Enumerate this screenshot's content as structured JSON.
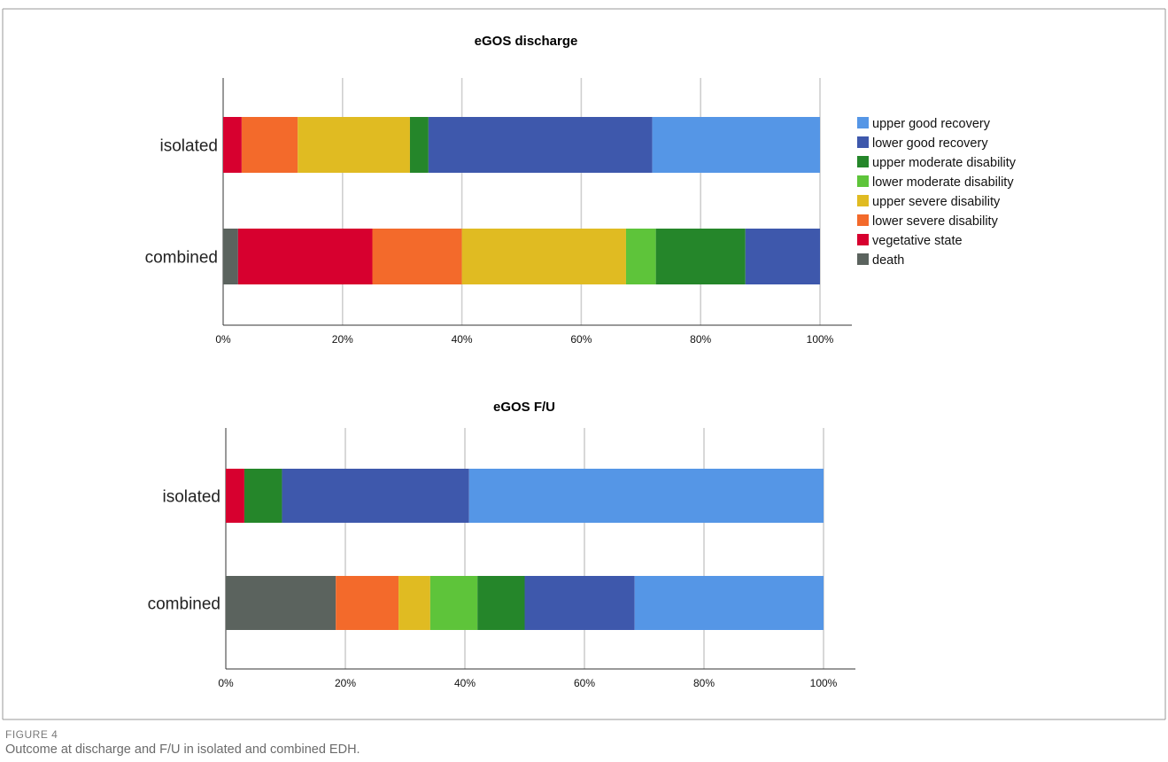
{
  "figure": {
    "label": "FIGURE 4",
    "caption": "Outcome at discharge and F/U in isolated and combined EDH."
  },
  "legend": {
    "placement": "right of top chart",
    "entries": [
      {
        "name": "upper good recovery",
        "color": "#5596e6"
      },
      {
        "name": "lower good recovery",
        "color": "#3e58ac"
      },
      {
        "name": "upper moderate disability",
        "color": "#25862a"
      },
      {
        "name": "lower moderate disability",
        "color": "#5ec43a"
      },
      {
        "name": "upper severe disability",
        "color": "#e0bb22"
      },
      {
        "name": "lower severe disability",
        "color": "#f36a2b"
      },
      {
        "name": "vegetative state",
        "color": "#d7002f"
      },
      {
        "name": "death",
        "color": "#5b635e"
      }
    ]
  },
  "chart_data": [
    {
      "type": "bar",
      "orientation": "horizontal",
      "stacked": true,
      "title": "eGOS discharge",
      "categories": [
        "isolated",
        "combined"
      ],
      "xlim": [
        0,
        100
      ],
      "xticks": [
        "0%",
        "20%",
        "40%",
        "60%",
        "80%",
        "100%"
      ],
      "grid": "vertical",
      "series": [
        {
          "name": "death",
          "values": [
            0,
            2.5
          ]
        },
        {
          "name": "vegetative state",
          "values": [
            3.1,
            22.5
          ]
        },
        {
          "name": "lower severe disability",
          "values": [
            9.4,
            15
          ]
        },
        {
          "name": "upper severe disability",
          "values": [
            18.8,
            27.5
          ]
        },
        {
          "name": "upper moderate disability",
          "values": [
            3.1,
            0
          ]
        },
        {
          "name": "lower moderate disability",
          "values": [
            0,
            5
          ]
        },
        {
          "name": "upper moderate disability",
          "values": [
            0,
            15
          ]
        },
        {
          "name": "lower good recovery",
          "values": [
            37.5,
            12.5
          ]
        },
        {
          "name": "upper good recovery",
          "values": [
            28.1,
            0
          ]
        }
      ]
    },
    {
      "type": "bar",
      "orientation": "horizontal",
      "stacked": true,
      "title": "eGOS F/U",
      "categories": [
        "isolated",
        "combined"
      ],
      "xlim": [
        0,
        100
      ],
      "xticks": [
        "0%",
        "20%",
        "40%",
        "60%",
        "80%",
        "100%"
      ],
      "grid": "vertical",
      "series": [
        {
          "name": "death",
          "values": [
            0,
            18.4
          ]
        },
        {
          "name": "vegetative state",
          "values": [
            3.1,
            0
          ]
        },
        {
          "name": "lower severe disability",
          "values": [
            0,
            10.5
          ]
        },
        {
          "name": "upper severe disability",
          "values": [
            0,
            5.3
          ]
        },
        {
          "name": "lower moderate disability",
          "values": [
            0,
            7.9
          ]
        },
        {
          "name": "upper moderate disability",
          "values": [
            6.3,
            7.9
          ]
        },
        {
          "name": "lower good recovery",
          "values": [
            31.3,
            18.4
          ]
        },
        {
          "name": "upper good recovery",
          "values": [
            59.3,
            31.6
          ]
        }
      ]
    }
  ]
}
